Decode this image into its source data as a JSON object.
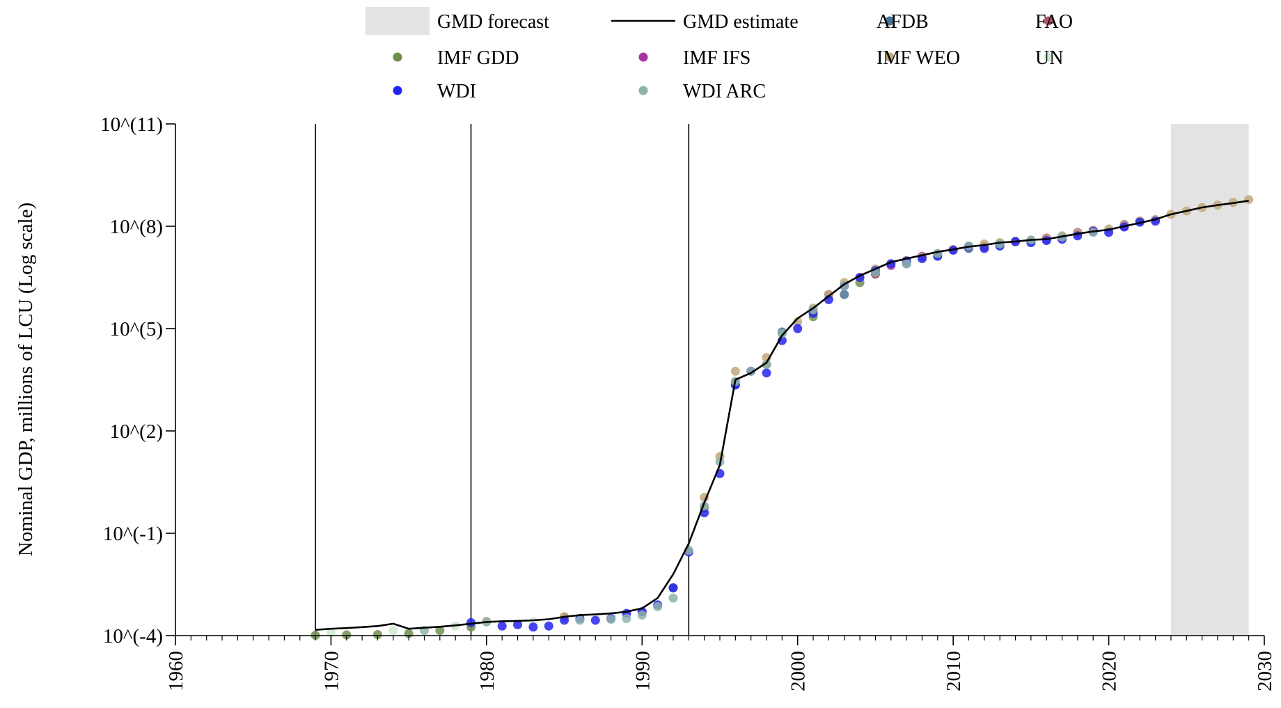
{
  "chart_data": {
    "type": "scatter",
    "title": "",
    "xlabel": "",
    "ylabel": "Nominal GDP, millions of LCU (Log scale)",
    "y_scale": "log10",
    "xlim": [
      1960,
      2030
    ],
    "ylim_log10": [
      -4,
      11
    ],
    "x_ticks": [
      1960,
      1970,
      1980,
      1990,
      2000,
      2010,
      2020,
      2030
    ],
    "x_tick_labels": [
      "1960",
      "1970",
      "1980",
      "1990",
      "2000",
      "2010",
      "2020",
      "2030"
    ],
    "y_ticks_log10": [
      -4,
      -1,
      2,
      5,
      8,
      11
    ],
    "y_tick_labels": [
      "10^(-4)",
      "10^(-1)",
      "10^(2)",
      "10^(5)",
      "10^(8)",
      "10^(11)"
    ],
    "grid": false,
    "legend_position": "top-center",
    "vertical_lines": [
      1969,
      1979,
      1993
    ],
    "forecast_region": {
      "label": "GMD forecast",
      "x_start": 2024,
      "x_end": 2029,
      "color": "#e3e3e3"
    },
    "estimate_line": {
      "name": "GMD estimate",
      "color": "#000000",
      "x": [
        1969,
        1970,
        1971,
        1972,
        1973,
        1974,
        1975,
        1976,
        1977,
        1978,
        1979,
        1980,
        1981,
        1982,
        1983,
        1984,
        1985,
        1986,
        1987,
        1988,
        1989,
        1990,
        1991,
        1992,
        1993,
        1994,
        1995,
        1996,
        1997,
        1998,
        1999,
        2000,
        2001,
        2002,
        2003,
        2004,
        2005,
        2006,
        2007,
        2008,
        2009,
        2010,
        2011,
        2012,
        2013,
        2014,
        2015,
        2016,
        2017,
        2018,
        2019,
        2020,
        2021,
        2022,
        2023,
        2024,
        2025,
        2026,
        2027,
        2028,
        2029
      ],
      "y_log10": [
        -3.83,
        -3.8,
        -3.78,
        -3.75,
        -3.72,
        -3.65,
        -3.8,
        -3.77,
        -3.74,
        -3.7,
        -3.65,
        -3.6,
        -3.58,
        -3.57,
        -3.55,
        -3.52,
        -3.45,
        -3.4,
        -3.38,
        -3.35,
        -3.3,
        -3.2,
        -2.9,
        -2.2,
        -1.3,
        -0.1,
        1.0,
        3.5,
        3.7,
        4.0,
        4.8,
        5.3,
        5.6,
        5.95,
        6.3,
        6.55,
        6.75,
        6.95,
        7.05,
        7.15,
        7.25,
        7.32,
        7.4,
        7.45,
        7.52,
        7.55,
        7.6,
        7.62,
        7.7,
        7.78,
        7.85,
        7.9,
        8.0,
        8.1,
        8.2,
        8.35,
        8.45,
        8.55,
        8.62,
        8.68,
        8.75
      ]
    },
    "series": [
      {
        "name": "AFDB",
        "color": "#4a7391",
        "x": [
          1996,
          1999,
          2001,
          2003,
          2005,
          2007,
          2009,
          2011,
          2013,
          2015,
          2017,
          2019,
          2021
        ],
        "y_log10": [
          3.35,
          4.9,
          5.5,
          6.0,
          6.6,
          6.9,
          7.15,
          7.35,
          7.45,
          7.55,
          7.65,
          7.85,
          8.05
        ]
      },
      {
        "name": "FAO",
        "color": "#b0566e",
        "x": [
          2002,
          2005,
          2008,
          2010,
          2012,
          2014,
          2016,
          2018,
          2021,
          2022
        ],
        "y_log10": [
          6.0,
          6.6,
          7.1,
          7.3,
          7.4,
          7.55,
          7.65,
          7.82,
          8.0,
          8.15
        ]
      },
      {
        "name": "IMF GDD",
        "color": "#6e8f4e",
        "x": [
          1969,
          1971,
          1973,
          1975,
          1977,
          1979,
          1985,
          1992,
          1994,
          1996,
          1998,
          2001,
          2004
        ],
        "y_log10": [
          -3.99,
          -3.98,
          -3.97,
          -3.94,
          -3.85,
          -3.75,
          -3.45,
          -2.6,
          -0.25,
          3.45,
          3.95,
          5.35,
          6.35
        ]
      },
      {
        "name": "IMF IFS",
        "color": "#a833a0",
        "x": [
          2006,
          2008,
          2011,
          2014,
          2016,
          2019,
          2021
        ],
        "y_log10": [
          6.85,
          7.12,
          7.4,
          7.55,
          7.62,
          7.88,
          8.05
        ]
      },
      {
        "name": "IMF WEO",
        "color": "#bfa87a",
        "x": [
          1980,
          1985,
          1990,
          1994,
          1995,
          1996,
          1998,
          2000,
          2001,
          2002,
          2003,
          2004,
          2005,
          2006,
          2007,
          2008,
          2009,
          2010,
          2011,
          2012,
          2013,
          2014,
          2015,
          2016,
          2017,
          2018,
          2019,
          2020,
          2021,
          2022,
          2023,
          2024,
          2025,
          2026,
          2027,
          2028,
          2029
        ],
        "y_log10": [
          -3.58,
          -3.45,
          -3.3,
          0.05,
          1.25,
          3.75,
          4.15,
          5.2,
          5.6,
          6.0,
          6.35,
          6.5,
          6.75,
          6.9,
          7.0,
          7.1,
          7.2,
          7.32,
          7.42,
          7.48,
          7.52,
          7.56,
          7.58,
          7.62,
          7.72,
          7.8,
          7.88,
          7.92,
          8.05,
          8.15,
          8.2,
          8.35,
          8.45,
          8.55,
          8.62,
          8.7,
          8.78
        ]
      },
      {
        "name": "UN",
        "color": "#cfe6cf",
        "x": [
          1970,
          1974,
          1978,
          1983,
          1988
        ],
        "y_log10": [
          -3.9,
          -3.85,
          -3.72,
          -3.6,
          -3.45
        ]
      },
      {
        "name": "WDI",
        "color": "#2424f0",
        "x": [
          1979,
          1981,
          1982,
          1983,
          1984,
          1985,
          1986,
          1987,
          1988,
          1989,
          1990,
          1991,
          1992,
          1993,
          1994,
          1995,
          1996,
          1997,
          1998,
          1999,
          2000,
          2001,
          2002,
          2003,
          2004,
          2005,
          2006,
          2007,
          2008,
          2009,
          2010,
          2011,
          2012,
          2013,
          2014,
          2015,
          2016,
          2017,
          2018,
          2019,
          2020,
          2021,
          2022,
          2023
        ],
        "y_log10": [
          -3.62,
          -3.72,
          -3.68,
          -3.75,
          -3.72,
          -3.55,
          -3.5,
          -3.55,
          -3.5,
          -3.35,
          -3.3,
          -3.1,
          -2.6,
          -1.55,
          -0.4,
          0.75,
          3.35,
          3.75,
          3.7,
          4.65,
          5.0,
          5.45,
          5.85,
          6.25,
          6.5,
          6.7,
          6.9,
          6.98,
          7.05,
          7.12,
          7.3,
          7.4,
          7.35,
          7.42,
          7.55,
          7.52,
          7.58,
          7.62,
          7.72,
          7.85,
          7.82,
          7.98,
          8.12,
          8.15
        ]
      },
      {
        "name": "WDI ARC",
        "color": "#8fb3a9",
        "x": [
          1976,
          1980,
          1986,
          1988,
          1989,
          1990,
          1991,
          1992,
          1993,
          1994,
          1995,
          1996,
          1997,
          1998,
          1999,
          2001,
          2003,
          2005,
          2007,
          2009,
          2011,
          2013,
          2015,
          2017,
          2019
        ],
        "y_log10": [
          -3.85,
          -3.6,
          -3.55,
          -3.52,
          -3.5,
          -3.4,
          -3.15,
          -2.9,
          -1.5,
          -0.2,
          1.1,
          3.45,
          3.75,
          3.95,
          4.85,
          5.55,
          6.25,
          6.65,
          6.9,
          7.2,
          7.42,
          7.48,
          7.6,
          7.68,
          7.82
        ]
      }
    ],
    "legend": [
      {
        "name": "GMD forecast",
        "kind": "patch",
        "color": "#e3e3e3"
      },
      {
        "name": "GMD estimate",
        "kind": "line",
        "color": "#000000"
      },
      {
        "name": "AFDB",
        "kind": "dot",
        "color": "#4a7391"
      },
      {
        "name": "FAO",
        "kind": "dot",
        "color": "#b0566e"
      },
      {
        "name": "IMF GDD",
        "kind": "dot",
        "color": "#6e8f4e"
      },
      {
        "name": "IMF IFS",
        "kind": "dot",
        "color": "#a833a0"
      },
      {
        "name": "IMF WEO",
        "kind": "dot",
        "color": "#bfa87a"
      },
      {
        "name": "UN",
        "kind": "dot",
        "color": "#cfe6cf"
      },
      {
        "name": "WDI",
        "kind": "dot",
        "color": "#2424f0"
      },
      {
        "name": "WDI ARC",
        "kind": "dot",
        "color": "#8fb3a9"
      }
    ]
  }
}
